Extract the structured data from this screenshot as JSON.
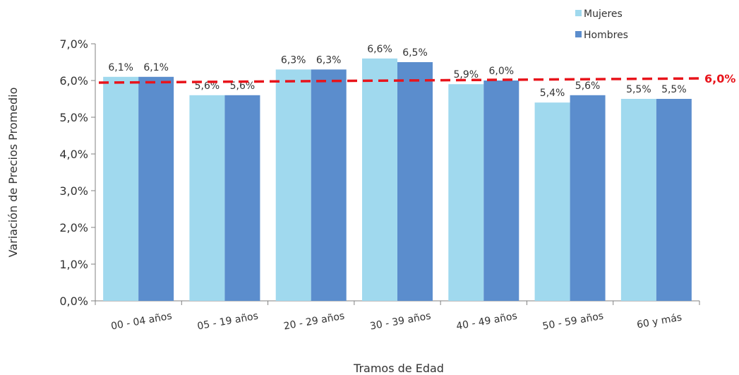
{
  "chart_data": {
    "type": "bar",
    "title": "",
    "xlabel": "Tramos de Edad",
    "ylabel": "Variación de Precios Promedio",
    "categories": [
      "00 - 04 años",
      "05 - 19 años",
      "20 - 29 años",
      "30 - 39 años",
      "40 - 49 años",
      "50 - 59 años",
      "60 y más"
    ],
    "series": [
      {
        "name": "Mujeres",
        "color": "#a0d9ee",
        "values": [
          6.1,
          5.6,
          6.3,
          6.6,
          5.9,
          5.4,
          5.5
        ],
        "labels": [
          "6,1%",
          "5,6%",
          "6,3%",
          "6,6%",
          "5,9%",
          "5,4%",
          "5,5%"
        ]
      },
      {
        "name": "Hombres",
        "color": "#5b8dcd",
        "values": [
          6.1,
          5.6,
          6.3,
          6.5,
          6.0,
          5.6,
          5.5
        ],
        "labels": [
          "6,1%",
          "5,6%",
          "6,3%",
          "6,5%",
          "6,0%",
          "5,6%",
          "5,5%"
        ]
      }
    ],
    "ylim": [
      0,
      7
    ],
    "yticks": [
      0,
      1,
      2,
      3,
      4,
      5,
      6,
      7
    ],
    "ytick_labels": [
      "0,0%",
      "1,0%",
      "2,0%",
      "3,0%",
      "4,0%",
      "5,0%",
      "6,0%",
      "7,0%"
    ],
    "reference_line": {
      "y": 6.0,
      "label": "6,0%",
      "color": "#e8141b",
      "style": "dashed"
    },
    "legend_position": "top-right",
    "grid": false,
    "title_color": "#1f6fb4"
  }
}
